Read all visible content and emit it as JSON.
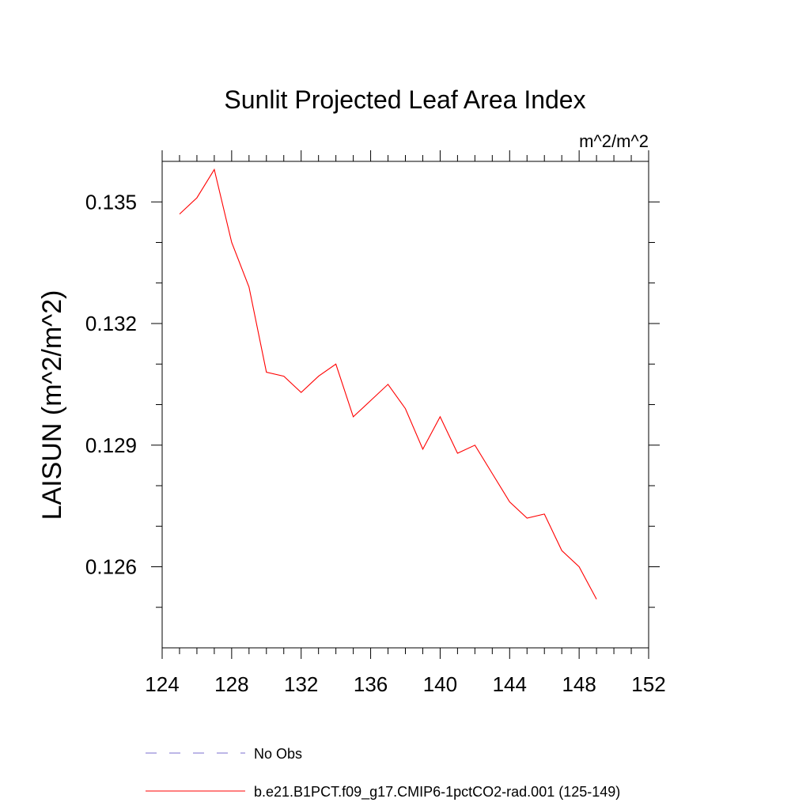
{
  "chart_data": {
    "type": "line",
    "title": "Sunlit Projected Leaf Area Index",
    "units_label": "m^2/m^2",
    "ylabel": "LAISUN  (m^2/m^2)",
    "xlabel": "",
    "xlim": [
      124,
      152
    ],
    "ylim": [
      0.124,
      0.136
    ],
    "x_ticks": [
      "124",
      "128",
      "132",
      "136",
      "140",
      "144",
      "148",
      "152"
    ],
    "x_tick_values": [
      124,
      128,
      132,
      136,
      140,
      144,
      148,
      152
    ],
    "y_ticks": [
      "0.126",
      "0.129",
      "0.132",
      "0.135"
    ],
    "y_tick_values": [
      0.126,
      0.129,
      0.132,
      0.135
    ],
    "grid": false,
    "legend_position": "bottom",
    "series": [
      {
        "name": "b.e21.B1PCT.f09_g17.CMIP6-1pctCO2-rad.001 (125-149)",
        "color": "#ff0000",
        "style": "solid",
        "x": [
          125,
          126,
          127,
          128,
          129,
          130,
          131,
          132,
          133,
          134,
          135,
          136,
          137,
          138,
          139,
          140,
          141,
          142,
          143,
          144,
          145,
          146,
          147,
          148,
          149
        ],
        "y": [
          0.1347,
          0.1351,
          0.1358,
          0.134,
          0.1329,
          0.1308,
          0.1307,
          0.1303,
          0.1307,
          0.131,
          0.1297,
          0.1301,
          0.1305,
          0.1299,
          0.1289,
          0.1297,
          0.1288,
          0.129,
          0.1283,
          0.1276,
          0.1272,
          0.1273,
          0.1264,
          0.126,
          0.1252
        ]
      }
    ],
    "legend": [
      {
        "label": "No Obs",
        "color": "#7b6fcf",
        "style": "dashed"
      },
      {
        "label": "b.e21.B1PCT.f09_g17.CMIP6-1pctCO2-rad.001 (125-149)",
        "color": "#ff0000",
        "style": "solid"
      }
    ]
  }
}
